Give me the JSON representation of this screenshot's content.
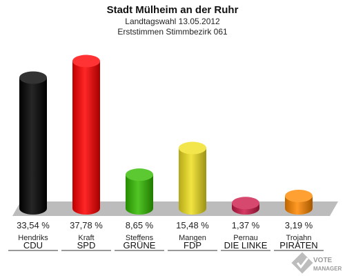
{
  "header": {
    "title": "Stadt Mülheim an der Ruhr",
    "subtitle_1": "Landtagswahl 13.05.2012",
    "subtitle_2": "Erststimmen Stimmbezirk 061"
  },
  "logo": {
    "line1": "VOTE",
    "line2": "MANAGER"
  },
  "chart_data": {
    "type": "bar",
    "title": "Stadt Mülheim an der Ruhr",
    "subtitle": "Landtagswahl 13.05.2012 / Erststimmen Stimmbezirk 061",
    "categories": [
      "CDU",
      "SPD",
      "GRÜNE",
      "FDP",
      "DIE LINKE",
      "PIRATEN"
    ],
    "candidates": [
      "Hendriks",
      "Kraft",
      "Steffens",
      "Mangen",
      "Pernau",
      "Trojahn"
    ],
    "values": [
      33.54,
      37.78,
      8.65,
      15.48,
      1.37,
      3.19
    ],
    "value_labels": [
      "33,54 %",
      "37,78 %",
      "8,65 %",
      "15,48 %",
      "1,37 %",
      "3,19 %"
    ],
    "colors": [
      "#000000",
      "#ff0000",
      "#33bb00",
      "#f0e020",
      "#cc1a4a",
      "#ff8800"
    ],
    "ylim": [
      0,
      40
    ],
    "grid": false,
    "legend": "none"
  }
}
